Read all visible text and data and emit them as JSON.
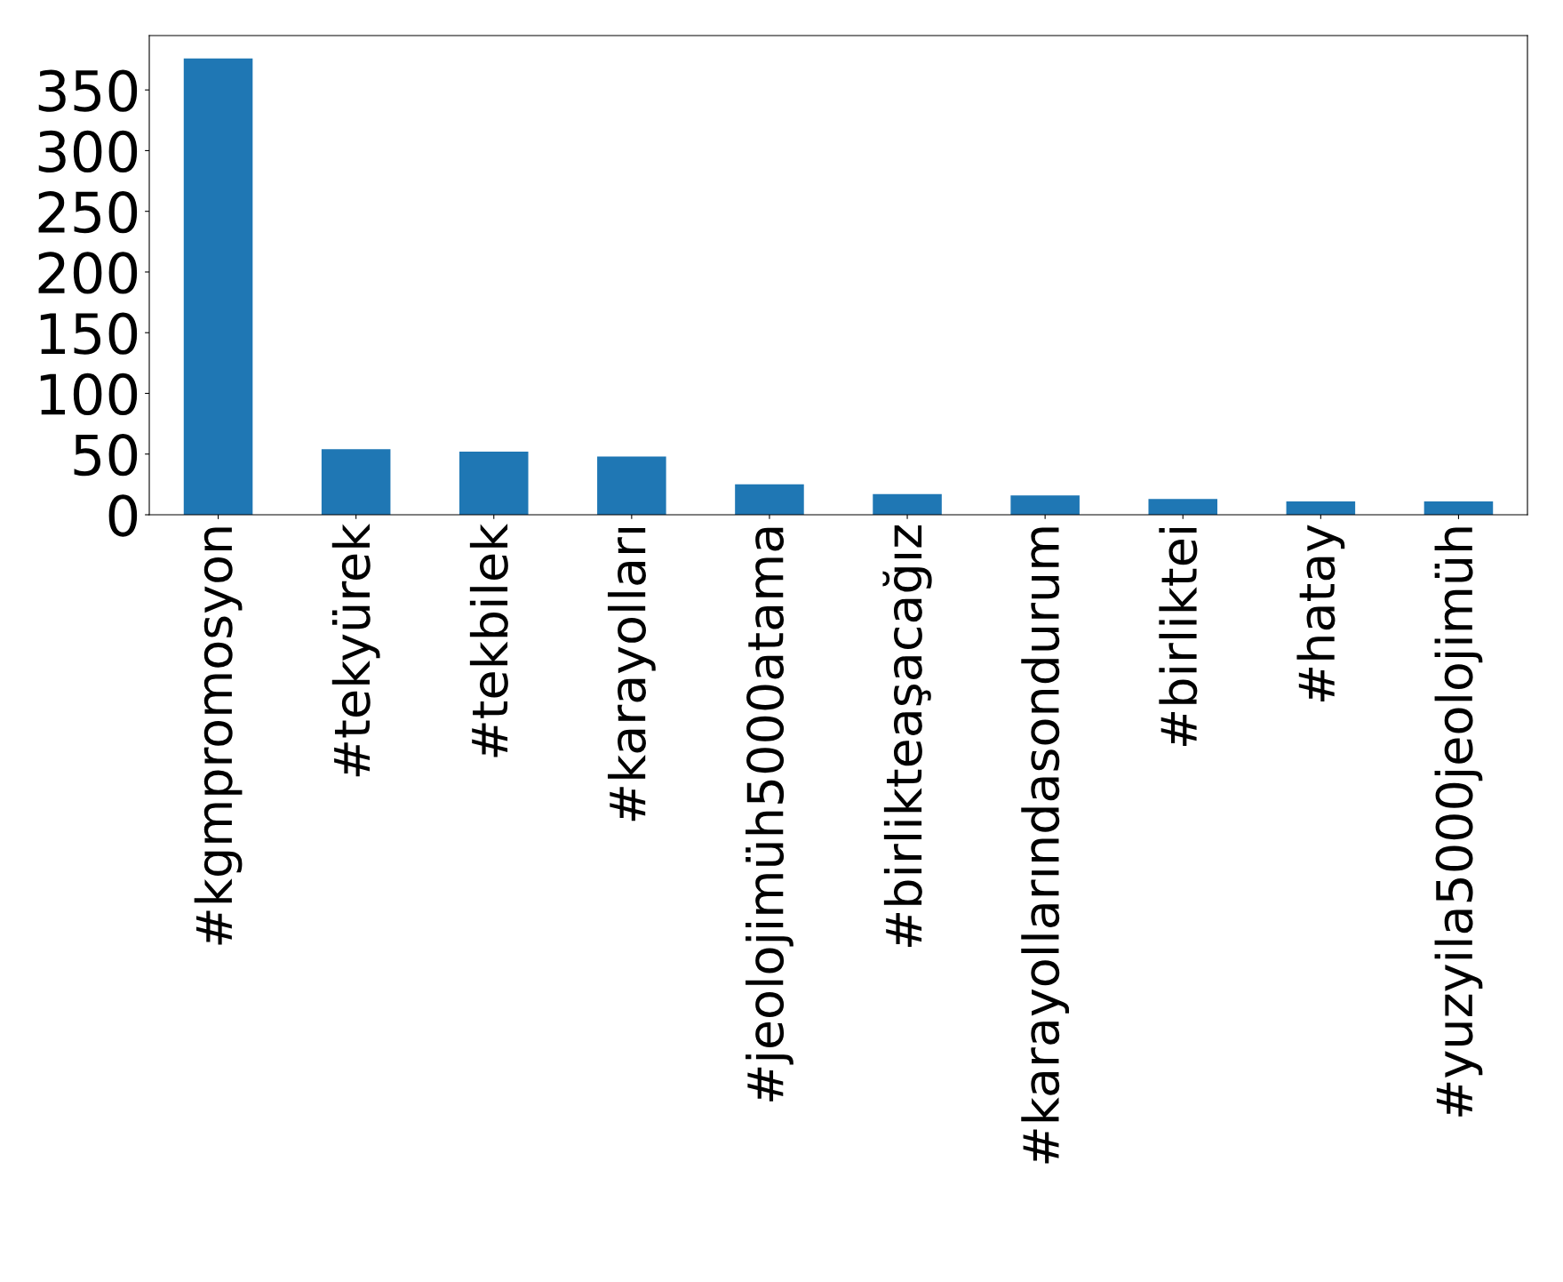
{
  "chart_data": {
    "type": "bar",
    "categories": [
      "#kgmpromosyon",
      "#tekyürek",
      "#tekbilek",
      "#karayolları",
      "#jeolojimüh5000atama",
      "#birlikteaşacağız",
      "#karayollarındasondurum",
      "#birliktei",
      "#hatay",
      "#yuzyila5000jeolojimüh"
    ],
    "values": [
      376,
      54,
      52,
      48,
      25,
      17,
      16,
      13,
      11,
      11
    ],
    "color": "#1f77b4",
    "ylim": [
      0,
      394.8
    ],
    "yticks": [
      0,
      50,
      100,
      150,
      200,
      250,
      300,
      350
    ],
    "grid": false,
    "legend": false
  }
}
